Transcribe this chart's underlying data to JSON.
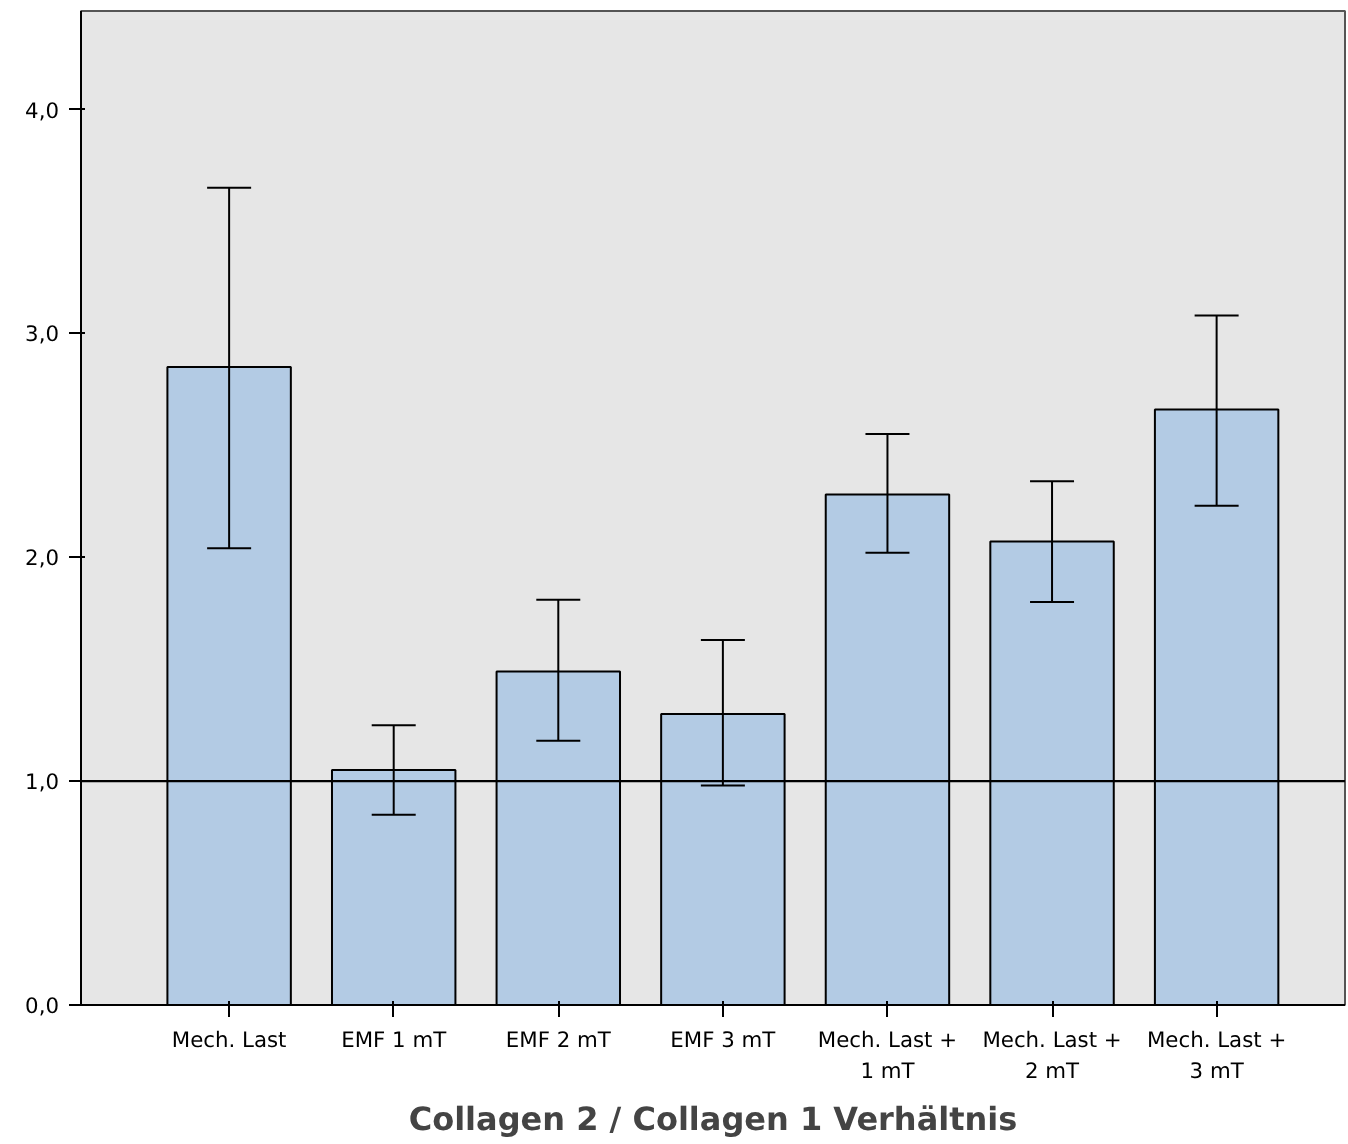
{
  "chart_data": {
    "type": "bar",
    "xlabel": "Collagen 2 / Collagen 1 Verhältnis",
    "categories": [
      "Mech. Last",
      "EMF 1 mT",
      "EMF 2 mT",
      "EMF 3 mT",
      "Mech. Last +\n1 mT",
      "Mech. Last +\n2 mT",
      "Mech. Last +\n3 mT"
    ],
    "values": [
      2.85,
      1.05,
      1.49,
      1.3,
      2.28,
      2.07,
      2.66
    ],
    "errors": [
      [
        2.04,
        3.65
      ],
      [
        0.85,
        1.25
      ],
      [
        1.18,
        1.81
      ],
      [
        0.98,
        1.63
      ],
      [
        2.02,
        2.55
      ],
      [
        1.8,
        2.34
      ],
      [
        2.23,
        3.08
      ]
    ],
    "color": "#b3cbe4",
    "ylim": [
      0,
      4.44
    ],
    "yticks": [
      {
        "value": 0,
        "label": "0,0"
      },
      {
        "value": 1,
        "label": "1,0"
      },
      {
        "value": 2,
        "label": "2,0"
      },
      {
        "value": 3,
        "label": "3,0"
      },
      {
        "value": 4,
        "label": "4,0"
      }
    ],
    "ref_lines": [
      {
        "axis": "y",
        "value": 1,
        "label": null,
        "color": "#000000"
      }
    ],
    "grid": false
  }
}
